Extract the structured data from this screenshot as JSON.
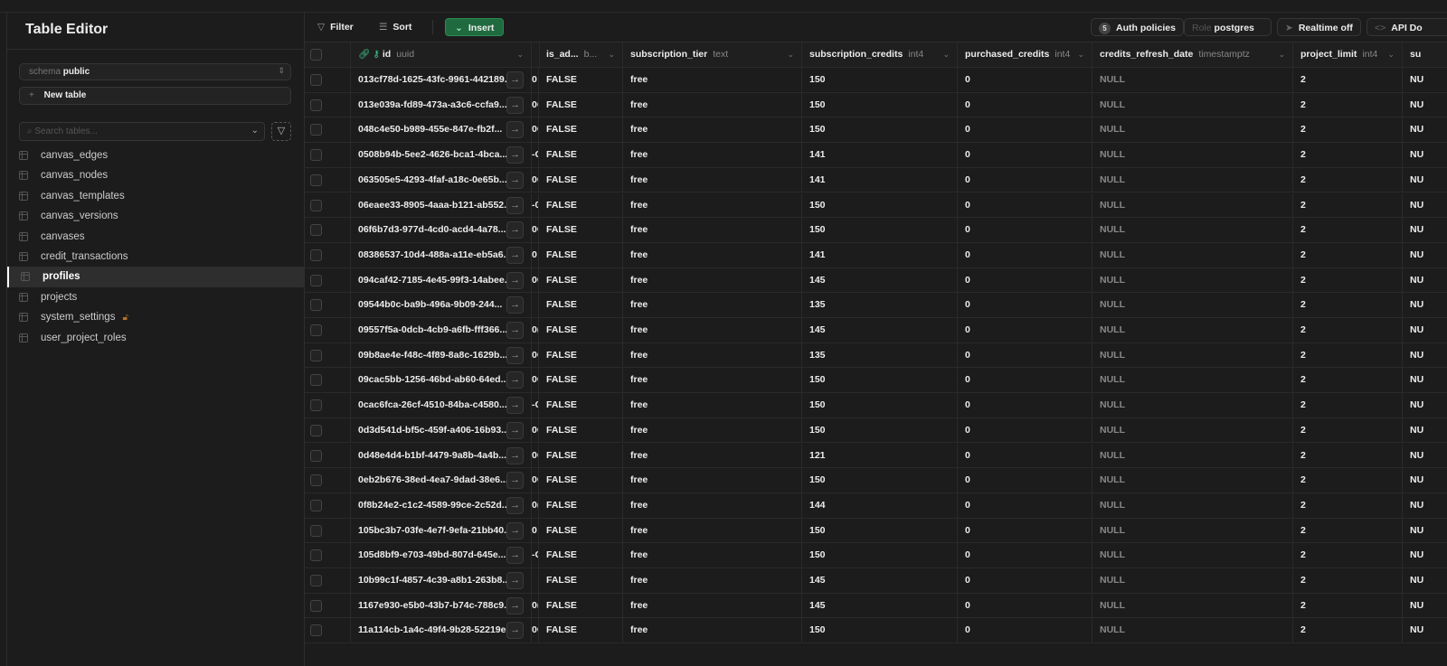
{
  "sidebar": {
    "title": "Table Editor",
    "schema_label": "schema",
    "schema_value": "public",
    "new_table": "New table",
    "search_placeholder": "Search tables...",
    "tables": [
      {
        "name": "canvas_edges"
      },
      {
        "name": "canvas_nodes"
      },
      {
        "name": "canvas_templates"
      },
      {
        "name": "canvas_versions"
      },
      {
        "name": "canvases"
      },
      {
        "name": "credit_transactions"
      },
      {
        "name": "profiles",
        "active": true
      },
      {
        "name": "projects"
      },
      {
        "name": "system_settings",
        "locked": true
      },
      {
        "name": "user_project_roles"
      }
    ]
  },
  "toolbar": {
    "filter": "Filter",
    "sort": "Sort",
    "insert": "Insert",
    "auth_count": "5",
    "auth_policies": "Auth policies",
    "role_label": "Role",
    "role_value": "postgres",
    "realtime": "Realtime off",
    "api_docs": "API Do"
  },
  "columns": [
    {
      "name": "id",
      "type": "uuid"
    },
    {
      "name": "is_ad...",
      "type": "b..."
    },
    {
      "name": "subscription_tier",
      "type": "text"
    },
    {
      "name": "subscription_credits",
      "type": "int4"
    },
    {
      "name": "purchased_credits",
      "type": "int4"
    },
    {
      "name": "credits_refresh_date",
      "type": "timestamptz"
    },
    {
      "name": "project_limit",
      "type": "int4"
    },
    {
      "name": "su",
      "type": ""
    }
  ],
  "colors": {
    "accent": "#3ecf8e",
    "insert_bg": "#1f6b3f",
    "lock": "#b8741a"
  },
  "rows": [
    [
      "013cf78d-1625-43fc-9961-442189...",
      "0",
      "FALSE",
      "free",
      "150",
      "0",
      "NULL",
      "2",
      "NU"
    ],
    [
      "013e039a-fd89-473a-a3c6-ccfa9...",
      "0C",
      "FALSE",
      "free",
      "150",
      "0",
      "NULL",
      "2",
      "NU"
    ],
    [
      "048c4e50-b989-455e-847e-fb2f...",
      "0C",
      "FALSE",
      "free",
      "150",
      "0",
      "NULL",
      "2",
      "NU"
    ],
    [
      "0508b94b-5ee2-4626-bca1-4bca...",
      "-C",
      "FALSE",
      "free",
      "141",
      "0",
      "NULL",
      "2",
      "NU"
    ],
    [
      "063505e5-4293-4faf-a18c-0e65b...",
      "0C",
      "FALSE",
      "free",
      "141",
      "0",
      "NULL",
      "2",
      "NU"
    ],
    [
      "06eaee33-8905-4aaa-b121-ab552...",
      "-0",
      "FALSE",
      "free",
      "150",
      "0",
      "NULL",
      "2",
      "NU"
    ],
    [
      "06f6b7d3-977d-4cd0-acd4-4a78...",
      "0C",
      "FALSE",
      "free",
      "150",
      "0",
      "NULL",
      "2",
      "NU"
    ],
    [
      "08386537-10d4-488a-a11e-eb5a6...",
      "0",
      "FALSE",
      "free",
      "141",
      "0",
      "NULL",
      "2",
      "NU"
    ],
    [
      "094caf42-7185-4e45-99f3-14abee...",
      "0C",
      "FALSE",
      "free",
      "145",
      "0",
      "NULL",
      "2",
      "NU"
    ],
    [
      "09544b0c-ba9b-496a-9b09-244...",
      "",
      "FALSE",
      "free",
      "135",
      "0",
      "NULL",
      "2",
      "NU"
    ],
    [
      "09557f5a-0dcb-4cb9-a6fb-fff366...",
      "0(",
      "FALSE",
      "free",
      "145",
      "0",
      "NULL",
      "2",
      "NU"
    ],
    [
      "09b8ae4e-f48c-4f89-8a8c-1629b...",
      "0C",
      "FALSE",
      "free",
      "135",
      "0",
      "NULL",
      "2",
      "NU"
    ],
    [
      "09cac5bb-1256-46bd-ab60-64ed...",
      "0C",
      "FALSE",
      "free",
      "150",
      "0",
      "NULL",
      "2",
      "NU"
    ],
    [
      "0cac6fca-26cf-4510-84ba-c4580...",
      "-C",
      "FALSE",
      "free",
      "150",
      "0",
      "NULL",
      "2",
      "NU"
    ],
    [
      "0d3d541d-bf5c-459f-a406-16b93...",
      "0C",
      "FALSE",
      "free",
      "150",
      "0",
      "NULL",
      "2",
      "NU"
    ],
    [
      "0d48e4d4-b1bf-4479-9a8b-4a4b...",
      "0C",
      "FALSE",
      "free",
      "121",
      "0",
      "NULL",
      "2",
      "NU"
    ],
    [
      "0eb2b676-38ed-4ea7-9dad-38e6...",
      "0C",
      "FALSE",
      "free",
      "150",
      "0",
      "NULL",
      "2",
      "NU"
    ],
    [
      "0f8b24e2-c1c2-4589-99ce-2c52d...",
      "0(",
      "FALSE",
      "free",
      "144",
      "0",
      "NULL",
      "2",
      "NU"
    ],
    [
      "105bc3b7-03fe-4e7f-9efa-21bb40...",
      "0",
      "FALSE",
      "free",
      "150",
      "0",
      "NULL",
      "2",
      "NU"
    ],
    [
      "105d8bf9-e703-49bd-807d-645e...",
      "-C",
      "FALSE",
      "free",
      "150",
      "0",
      "NULL",
      "2",
      "NU"
    ],
    [
      "10b99c1f-4857-4c39-a8b1-263b8...",
      "",
      "FALSE",
      "free",
      "145",
      "0",
      "NULL",
      "2",
      "NU"
    ],
    [
      "1167e930-e5b0-43b7-b74c-788c9...",
      "0(",
      "FALSE",
      "free",
      "145",
      "0",
      "NULL",
      "2",
      "NU"
    ],
    [
      "11a114cb-1a4c-49f4-9b28-52219ec...",
      "0C",
      "FALSE",
      "free",
      "150",
      "0",
      "NULL",
      "2",
      "NU"
    ]
  ]
}
